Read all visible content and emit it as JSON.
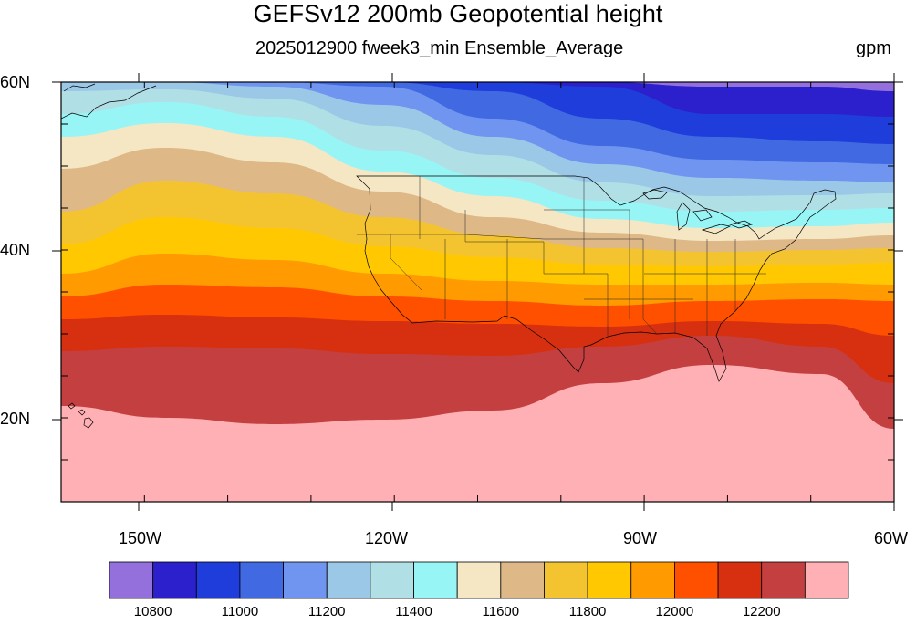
{
  "title": "GEFSv12 200mb Geopotential height",
  "subtitle": "2025012900 fweek3_min Ensemble_Average",
  "units": "gpm",
  "lat_labels": [
    "60N",
    "40N",
    "20N"
  ],
  "lon_labels": [
    "150W",
    "120W",
    "90W",
    "60W"
  ],
  "colorbar": {
    "colors": [
      "#9370db",
      "#2c1fcc",
      "#1e3ddb",
      "#4169e1",
      "#6f95f0",
      "#9cc8e8",
      "#b0e0e6",
      "#98f5f5",
      "#f5e6c4",
      "#deb887",
      "#f4c430",
      "#ffc800",
      "#ff9a00",
      "#ff5000",
      "#d73010",
      "#c44040",
      "#ffb0b4"
    ],
    "tick_labels": [
      "10800",
      "11000",
      "11200",
      "11400",
      "11600",
      "11800",
      "12000",
      "12200"
    ]
  },
  "chart_data": {
    "type": "heatmap",
    "title": "GEFSv12 200mb Geopotential height",
    "subtitle": "2025012900 fweek3_min Ensemble_Average",
    "units": "gpm",
    "lon_range": [
      -160,
      -60
    ],
    "lat_range": [
      10,
      60
    ],
    "contour_levels": [
      10800,
      10900,
      11000,
      11100,
      11200,
      11300,
      11400,
      11500,
      11600,
      11700,
      11800,
      11900,
      12000,
      12100,
      12200,
      12300
    ]
  }
}
